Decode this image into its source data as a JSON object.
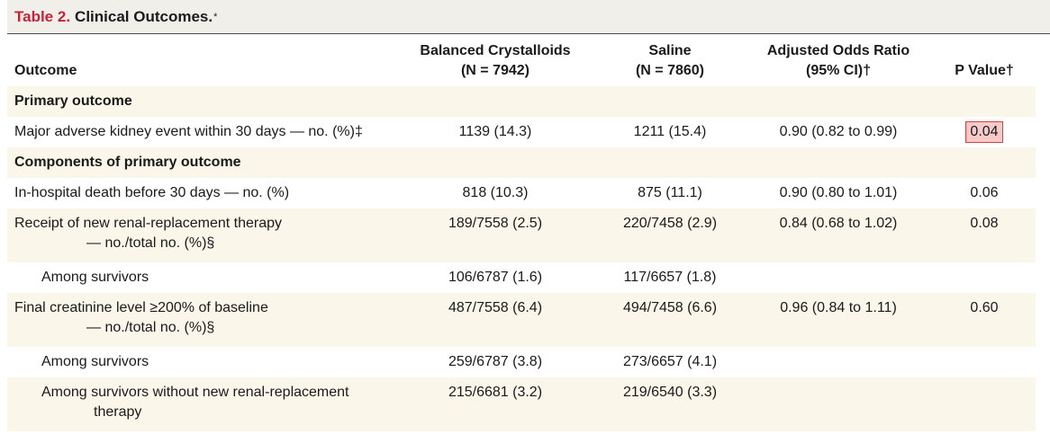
{
  "title": {
    "label": "Table 2.",
    "text": "Clinical Outcomes.",
    "mark": "*"
  },
  "headers": [
    {
      "line1": "Outcome",
      "line2": ""
    },
    {
      "line1": "Balanced Crystalloids",
      "line2": "(N = 7942)"
    },
    {
      "line1": "Saline",
      "line2": "(N = 7860)"
    },
    {
      "line1": "Adjusted Odds Ratio",
      "line2": "(95% CI)†"
    },
    {
      "line1": "P Value†",
      "line2": ""
    }
  ],
  "rows": [
    {
      "label": "Primary outcome"
    },
    {
      "label": "Major adverse kidney event within 30 days — no. (%)‡",
      "bal": "1139 (14.3)",
      "sal": "1211 (15.4)",
      "or": "0.90 (0.82 to 0.99)",
      "p": "0.04"
    },
    {
      "label": "Components of primary outcome"
    },
    {
      "label": "In-hospital death before 30 days — no. (%)",
      "bal": "818 (10.3)",
      "sal": "875 (11.1)",
      "or": "0.90 (0.80 to 1.01)",
      "p": "0.06"
    },
    {
      "label": "Receipt of new renal-replacement therapy",
      "label2": "— no./total no. (%)§",
      "bal": "189/7558 (2.5)",
      "sal": "220/7458 (2.9)",
      "or": "0.84 (0.68 to 1.02)",
      "p": "0.08"
    },
    {
      "label": "Among survivors",
      "bal": "106/6787 (1.6)",
      "sal": "117/6657 (1.8)",
      "or": "",
      "p": ""
    },
    {
      "label": "Final creatinine level ≥200% of baseline",
      "label2": "— no./total no. (%)§",
      "bal": "487/7558 (6.4)",
      "sal": "494/7458 (6.6)",
      "or": "0.96 (0.84 to 1.11)",
      "p": "0.60"
    },
    {
      "label": "Among survivors",
      "bal": "259/6787 (3.8)",
      "sal": "273/6657 (4.1)",
      "or": "",
      "p": ""
    },
    {
      "label": "Among survivors without new renal-replacement",
      "label2": "therapy",
      "bal": "215/6681 (3.2)",
      "sal": "219/6540 (3.3)",
      "or": "",
      "p": ""
    }
  ],
  "colors": {
    "title_label": "#c0263a",
    "row_tint": "#fbf6ea",
    "title_bg": "#f0efe9",
    "highlight_border": "#d0423d",
    "highlight_fill": "#f7c9c9"
  }
}
